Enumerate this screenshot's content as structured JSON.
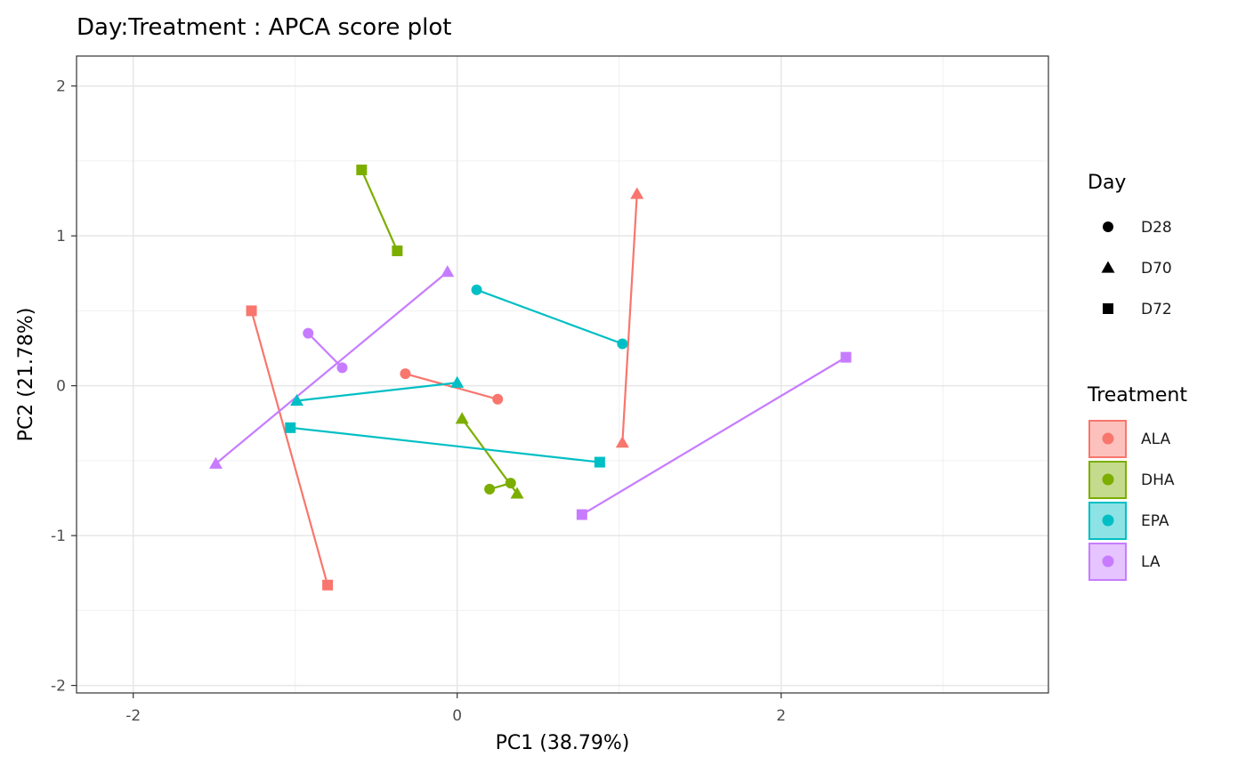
{
  "chart_data": {
    "type": "scatter",
    "title": "Day:Treatment : APCA score plot",
    "xlabel": "PC1 (38.79%)",
    "ylabel": "PC2 (21.78%)",
    "xlim": [
      -2.35,
      3.65
    ],
    "ylim": [
      -2.05,
      2.2
    ],
    "x_ticks": [
      -2,
      0,
      2
    ],
    "x_tick_labels": [
      "-2",
      "0",
      "2"
    ],
    "y_ticks": [
      -2,
      -1,
      0,
      1,
      2
    ],
    "y_tick_labels": [
      "-2",
      "-1",
      "0",
      "1",
      "2"
    ],
    "grid": true,
    "legend_position": "right",
    "day_legend": {
      "title": "Day",
      "items": [
        {
          "label": "D28",
          "shape": "circle"
        },
        {
          "label": "D70",
          "shape": "triangle"
        },
        {
          "label": "D72",
          "shape": "square"
        }
      ]
    },
    "treatment_legend": {
      "title": "Treatment",
      "items": [
        {
          "label": "ALA",
          "color": "#F8766D"
        },
        {
          "label": "DHA",
          "color": "#7CAE00"
        },
        {
          "label": "EPA",
          "color": "#00BFC4"
        },
        {
          "label": "LA",
          "color": "#C77CFF"
        }
      ]
    },
    "series": [
      {
        "treatment": "ALA",
        "day": "D28",
        "points": [
          [
            -0.32,
            0.08
          ],
          [
            0.25,
            -0.09
          ]
        ]
      },
      {
        "treatment": "ALA",
        "day": "D70",
        "points": [
          [
            1.11,
            1.28
          ],
          [
            1.02,
            -0.38
          ]
        ]
      },
      {
        "treatment": "ALA",
        "day": "D72",
        "points": [
          [
            -1.27,
            0.5
          ],
          [
            -0.8,
            -1.33
          ]
        ]
      },
      {
        "treatment": "DHA",
        "day": "D28",
        "points": [
          [
            0.2,
            -0.69
          ],
          [
            0.33,
            -0.65
          ]
        ]
      },
      {
        "treatment": "DHA",
        "day": "D70",
        "points": [
          [
            0.03,
            -0.22
          ],
          [
            0.37,
            -0.72
          ]
        ]
      },
      {
        "treatment": "DHA",
        "day": "D72",
        "points": [
          [
            -0.59,
            1.44
          ],
          [
            -0.37,
            0.9
          ]
        ]
      },
      {
        "treatment": "EPA",
        "day": "D28",
        "points": [
          [
            0.12,
            0.64
          ],
          [
            1.02,
            0.28
          ]
        ]
      },
      {
        "treatment": "EPA",
        "day": "D70",
        "points": [
          [
            -0.99,
            -0.1
          ],
          [
            0.0,
            0.02
          ]
        ]
      },
      {
        "treatment": "EPA",
        "day": "D72",
        "points": [
          [
            -1.03,
            -0.28
          ],
          [
            0.88,
            -0.51
          ]
        ]
      },
      {
        "treatment": "LA",
        "day": "D28",
        "points": [
          [
            -0.92,
            0.35
          ],
          [
            -0.71,
            0.12
          ]
        ]
      },
      {
        "treatment": "LA",
        "day": "D70",
        "points": [
          [
            -1.49,
            -0.52
          ],
          [
            -0.06,
            0.76
          ]
        ]
      },
      {
        "treatment": "LA",
        "day": "D72",
        "points": [
          [
            0.77,
            -0.86
          ],
          [
            2.4,
            0.19
          ]
        ]
      }
    ]
  }
}
